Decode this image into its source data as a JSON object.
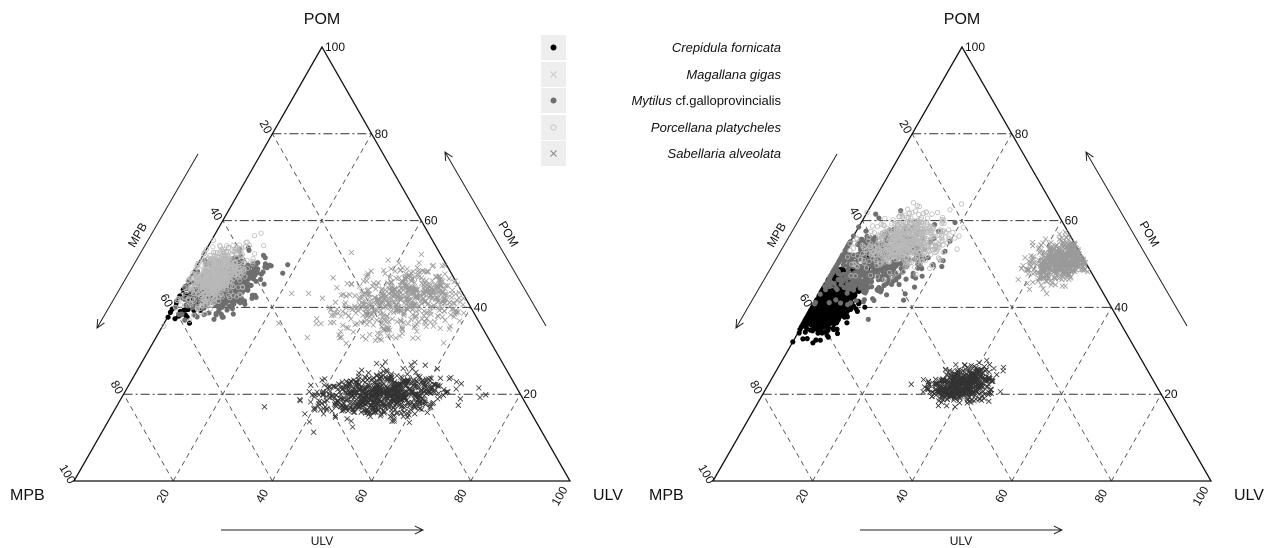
{
  "chart_data": [
    {
      "type": "ternary-scatter",
      "corners": {
        "top": "POM",
        "left": "MPB",
        "right": "ULV"
      },
      "axes": {
        "POM": "POM",
        "MPB": "MPB",
        "ULV": "ULV"
      },
      "ticks": [
        20,
        40,
        60,
        80,
        100
      ],
      "grid": true,
      "series": [
        {
          "name": "Crepidula fornicata",
          "marker": "dot",
          "color": "#000000",
          "center": {
            "POM": 41,
            "MPB": 56,
            "ULV": 3
          },
          "spread": {
            "POM": 2,
            "ULV": 2
          },
          "n": 60
        },
        {
          "name": "Magallana gigas",
          "marker": "x",
          "color": "#9a9a9a",
          "center": {
            "POM": 42,
            "MPB": 12,
            "ULV": 46
          },
          "spread": {
            "POM": 4,
            "ULV": 7
          },
          "n": 600
        },
        {
          "name": "Mytilus cf.galloprovincialis",
          "marker": "dot",
          "color": "#6e6e6e",
          "center": {
            "POM": 45,
            "MPB": 47,
            "ULV": 8
          },
          "spread": {
            "POM": 3,
            "ULV": 3
          },
          "n": 500
        },
        {
          "name": "Porcellana platycheles",
          "marker": "circle",
          "color": "#b9b9b9",
          "center": {
            "POM": 47,
            "MPB": 48,
            "ULV": 5
          },
          "spread": {
            "POM": 3.5,
            "ULV": 2.5
          },
          "n": 600
        },
        {
          "name": "Sabellaria alveolata",
          "marker": "x",
          "color": "#333333",
          "center": {
            "POM": 20,
            "MPB": 28,
            "ULV": 52
          },
          "spread": {
            "POM": 2.5,
            "ULV": 6
          },
          "n": 700
        }
      ]
    },
    {
      "type": "ternary-scatter",
      "corners": {
        "top": "POM",
        "left": "MPB",
        "right": "ULV"
      },
      "axes": {
        "POM": "POM",
        "MPB": "MPB",
        "ULV": "ULV"
      },
      "ticks": [
        20,
        40,
        60,
        80,
        100
      ],
      "grid": true,
      "series": [
        {
          "name": "Crepidula fornicata",
          "marker": "dot",
          "color": "#000000",
          "center": {
            "POM": 41,
            "MPB": 56,
            "ULV": 3
          },
          "spread": {
            "POM": 3.5,
            "ULV": 2.5
          },
          "n": 700
        },
        {
          "name": "Magallana gigas",
          "marker": "x",
          "color": "#9a9a9a",
          "center": {
            "POM": 51,
            "MPB": 4,
            "ULV": 45
          },
          "spread": {
            "POM": 2.5,
            "ULV": 3
          },
          "n": 600
        },
        {
          "name": "Mytilus cf.galloprovincialis",
          "marker": "dot",
          "color": "#6e6e6e",
          "center": {
            "POM": 50,
            "MPB": 43,
            "ULV": 7
          },
          "spread": {
            "POM": 4,
            "ULV": 5
          },
          "n": 500
        },
        {
          "name": "Porcellana platycheles",
          "marker": "circle",
          "color": "#b9b9b9",
          "center": {
            "POM": 55,
            "MPB": 34,
            "ULV": 11
          },
          "spread": {
            "POM": 3,
            "ULV": 4
          },
          "n": 600
        },
        {
          "name": "Sabellaria alveolata",
          "marker": "x",
          "color": "#333333",
          "center": {
            "POM": 22,
            "MPB": 39,
            "ULV": 39
          },
          "spread": {
            "POM": 2,
            "ULV": 3
          },
          "n": 500
        }
      ]
    }
  ],
  "legend": {
    "placement": "top-center",
    "items": [
      {
        "label": "Crepidula fornicata",
        "marker": "dot",
        "color": "#000000"
      },
      {
        "label": "Magallana gigas",
        "marker": "x",
        "color": "#c8c8c8"
      },
      {
        "label_genus": "Mytilus",
        "label_rest": " cf.galloprovincialis",
        "marker": "dot",
        "color": "#6e6e6e"
      },
      {
        "label": "Porcellana platycheles",
        "marker": "circle",
        "color": "#c8c8c8"
      },
      {
        "label": "Sabellaria alveolata",
        "marker": "x",
        "color": "#888888"
      }
    ]
  }
}
